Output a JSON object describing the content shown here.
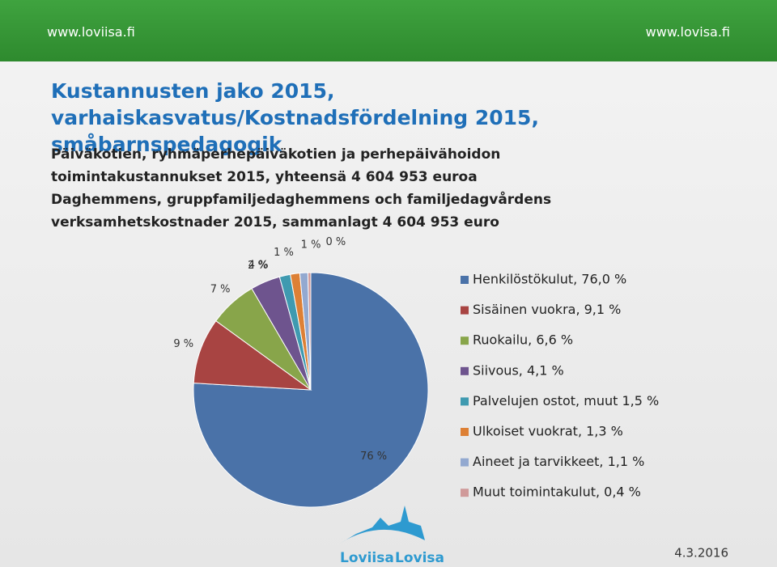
{
  "header": {
    "left_url": "www.loviisa.fi",
    "right_url": "www.lovisa.fi"
  },
  "title": "Kustannusten jako 2015, varhaiskasvatus/Kostnadsfördelning 2015, småbarnspedagogik",
  "subtitle_fi": "Päiväkotien, ryhmäperhepäiväkotien ja perhepäivähoidon toimintakustannukset 2015, yhteensä 4 604 953 euroa",
  "subtitle_sv": "Daghemmens, gruppfamiljedaghemmens och familjedagvårdens verksamhetskostnader 2015, sammanlagt 4 604 953 euro",
  "chart_data": {
    "type": "pie",
    "categories": [
      "Henkilöstökulut, 76,0 %",
      "Sisäinen vuokra, 9,1 %",
      "Ruokailu, 6,6 %",
      "Siivous, 4,1 %",
      "Palvelujen ostot, muut 1,5 %",
      "Ulkoiset vuokrat,  1,3 %",
      "Aineet ja tarvikkeet, 1,1 %",
      "Muut toimintakulut, 0,4 %"
    ],
    "values": [
      76.0,
      9.1,
      6.6,
      4.1,
      1.5,
      1.3,
      1.1,
      0.4
    ],
    "value_labels": [
      "76 %",
      "9 %",
      "7 %",
      "4 %",
      "2 %",
      "1 %",
      "1 %",
      "0 %"
    ],
    "colors": [
      "#4a72a8",
      "#a84442",
      "#88a54a",
      "#6e548e",
      "#3f9ab0",
      "#dd8035",
      "#93a9d0",
      "#d09a9a"
    ]
  },
  "footer": {
    "logo_left": "Loviisa",
    "logo_right": "Lovisa",
    "date": "4.3.2016"
  }
}
